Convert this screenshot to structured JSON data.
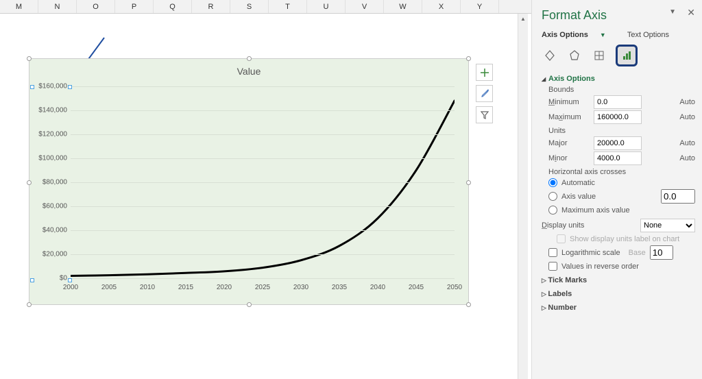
{
  "columns": [
    "M",
    "N",
    "O",
    "P",
    "Q",
    "R",
    "S",
    "T",
    "U",
    "V",
    "W",
    "X",
    "Y"
  ],
  "chart": {
    "type": "line",
    "title": "Value",
    "background_color": "#e9f2e5",
    "grid_color": "#d8e0d4",
    "line_color": "#000000",
    "line_width": 3,
    "y_prefix": "$",
    "y_format": "comma",
    "ylim": [
      0,
      160000
    ],
    "ytick_step": 20000,
    "y_ticks": [
      0,
      20000,
      40000,
      60000,
      80000,
      100000,
      120000,
      140000,
      160000
    ],
    "xlim": [
      2000,
      2050
    ],
    "xtick_step": 5,
    "x_ticks": [
      2000,
      2005,
      2010,
      2015,
      2020,
      2025,
      2030,
      2035,
      2040,
      2045,
      2050
    ],
    "series": {
      "x": [
        2000,
        2005,
        2010,
        2015,
        2020,
        2025,
        2030,
        2035,
        2040,
        2045,
        2050
      ],
      "y": [
        2000,
        2500,
        3300,
        4400,
        5800,
        8800,
        15000,
        27000,
        50000,
        90000,
        148000
      ]
    },
    "arrow_color": "#1f4ea0"
  },
  "side_icons": {
    "plus": "+",
    "brush": "brush-icon",
    "funnel": "funnel-icon"
  },
  "pane": {
    "title": "Format Axis",
    "tabs": {
      "options": "Axis Options",
      "text": "Text Options"
    },
    "icons": [
      "fill-icon",
      "effects-icon",
      "size-icon",
      "axis-icon"
    ],
    "selected_icon": 3,
    "axis_options": {
      "heading": "Axis Options",
      "bounds_label": "Bounds",
      "min_label": "Minimum",
      "min_value": "0.0",
      "min_auto": "Auto",
      "max_label": "Maximum",
      "max_value": "160000.0",
      "max_auto": "Auto",
      "units_label": "Units",
      "major_label": "Major",
      "major_value": "20000.0",
      "major_auto": "Auto",
      "minor_label": "Minor",
      "minor_value": "4000.0",
      "minor_auto": "Auto",
      "crosses_label": "Horizontal axis crosses",
      "crosses_auto": "Automatic",
      "crosses_value_label": "Axis value",
      "crosses_value": "0.0",
      "crosses_max": "Maximum axis value",
      "display_units_label": "Display units",
      "display_units_value": "None",
      "show_units_label": "Show display units label on chart",
      "log_label": "Logarithmic scale",
      "log_base_label": "Base",
      "log_base": "10",
      "reverse_label": "Values in reverse order"
    },
    "collapsed": {
      "tick": "Tick Marks",
      "labels": "Labels",
      "number": "Number"
    }
  }
}
